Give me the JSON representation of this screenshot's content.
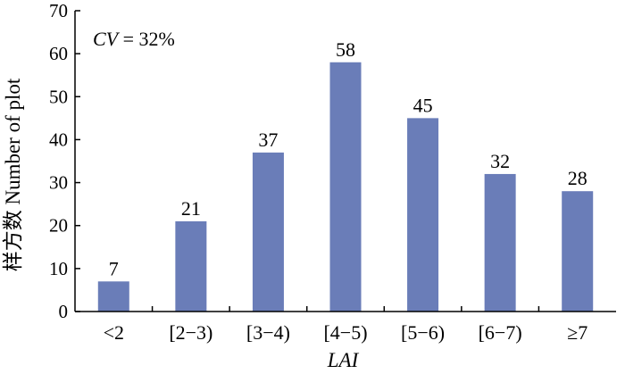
{
  "chart_data": {
    "type": "bar",
    "categories": [
      "<2",
      "[2−3)",
      "[3−4)",
      "[4−5)",
      "[5−6)",
      "[6−7)",
      "≥7"
    ],
    "values": [
      7,
      21,
      37,
      58,
      45,
      32,
      28
    ],
    "data_labels": [
      "7",
      "21",
      "37",
      "58",
      "45",
      "32",
      "28"
    ],
    "title": "",
    "xlabel": "LAI",
    "ylabel": "样方数 Number of plot",
    "ylim": [
      0,
      70
    ],
    "yticks": [
      0,
      10,
      20,
      30,
      40,
      50,
      60,
      70
    ],
    "ytick_labels": [
      "0",
      "10",
      "20",
      "30",
      "40",
      "50",
      "60",
      "70"
    ],
    "grid": false,
    "bar_color": "#6a7db8",
    "annotation": {
      "italic": "CV",
      "text": " = 32%"
    }
  }
}
